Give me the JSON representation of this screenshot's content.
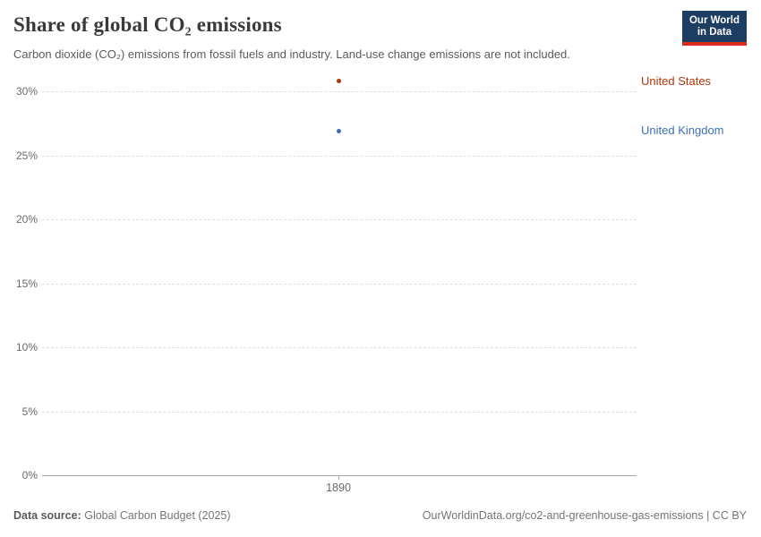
{
  "header": {
    "title": "Share of global CO₂ emissions",
    "subtitle": "Carbon dioxide (CO₂) emissions from fossil fuels and industry. Land-use change emissions are not included.",
    "logo": {
      "line1": "Our World",
      "line2": "in Data"
    }
  },
  "chart_data": {
    "type": "scatter",
    "title": "Share of global CO₂ emissions",
    "x": [
      1890
    ],
    "xticks": [
      "1890"
    ],
    "series": [
      {
        "name": "United States",
        "values": [
          30.8
        ],
        "color": "#b13507"
      },
      {
        "name": "United Kingdom",
        "values": [
          26.9
        ],
        "color": "#3d6fb5"
      }
    ],
    "xlabel": "",
    "ylabel": "",
    "ylim": [
      0,
      32
    ],
    "ytick_values": [
      0,
      5,
      10,
      15,
      20,
      25,
      30
    ],
    "ytick_labels": [
      "0%",
      "5%",
      "10%",
      "15%",
      "20%",
      "25%",
      "30%"
    ],
    "grid": "horizontal-dashed",
    "legend_position": "entity-labels-right-of-plot"
  },
  "footer": {
    "source_label": "Data source:",
    "source_value": "Global Carbon Budget (2025)",
    "link": "OurWorldinData.org/co2-and-greenhouse-gas-emissions | CC BY"
  },
  "colors": {
    "united_states": "#b13507",
    "united_kingdom": "#3d6fb5",
    "logo_bg": "#1d3d63",
    "logo_accent": "#dc2a20",
    "gridline": "#dcdee0",
    "axis_line": "#a7a9ab",
    "tick_text": "#67696b"
  }
}
